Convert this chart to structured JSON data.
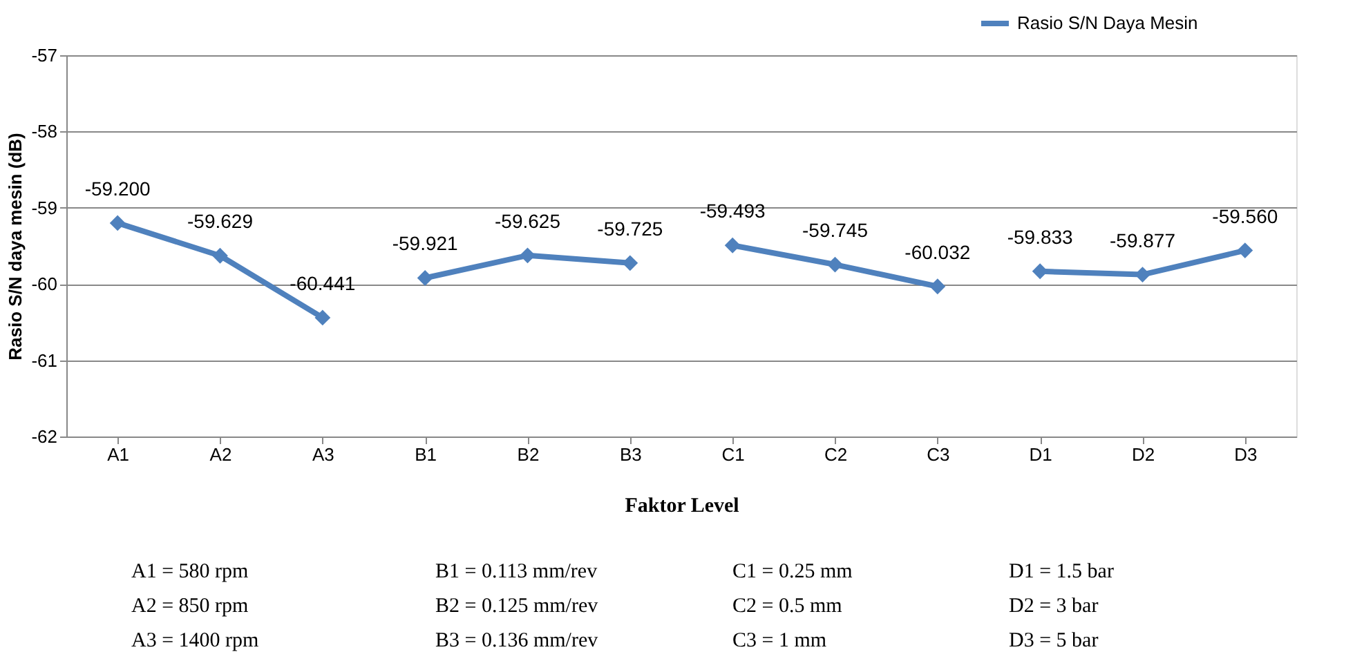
{
  "chart_data": {
    "type": "line",
    "xlabel": "Faktor Level",
    "ylabel": "Rasio S/N daya mesin (dB)",
    "categories": [
      "A1",
      "A2",
      "A3",
      "B1",
      "B2",
      "B3",
      "C1",
      "C2",
      "C3",
      "D1",
      "D2",
      "D3"
    ],
    "series": [
      {
        "name": "Rasio S/N Daya Mesin",
        "color": "#4f81bd",
        "values": [
          -59.2,
          -59.629,
          -60.441,
          null,
          null,
          null,
          null,
          null,
          null,
          null,
          null,
          null
        ],
        "value_labels": [
          "-59.200",
          "-59.629",
          "-60.441",
          null,
          null,
          null,
          null,
          null,
          null,
          null,
          null,
          null
        ]
      },
      {
        "color": "#4f81bd",
        "values": [
          null,
          null,
          null,
          -59.921,
          -59.625,
          -59.725,
          null,
          null,
          null,
          null,
          null,
          null
        ],
        "value_labels": [
          null,
          null,
          null,
          "-59.921",
          "-59.625",
          "-59.725",
          null,
          null,
          null,
          null,
          null,
          null
        ]
      },
      {
        "color": "#4f81bd",
        "values": [
          null,
          null,
          null,
          null,
          null,
          null,
          -59.493,
          -59.745,
          -60.032,
          null,
          null,
          null
        ],
        "value_labels": [
          null,
          null,
          null,
          null,
          null,
          null,
          "-59.493",
          "-59.745",
          "-60.032",
          null,
          null,
          null
        ]
      },
      {
        "color": "#4f81bd",
        "values": [
          null,
          null,
          null,
          null,
          null,
          null,
          null,
          null,
          null,
          -59.833,
          -59.877,
          -59.56
        ],
        "value_labels": [
          null,
          null,
          null,
          null,
          null,
          null,
          null,
          null,
          null,
          "-59.833",
          "-59.877",
          "-59.560"
        ]
      }
    ],
    "ylim": [
      -62,
      -57
    ],
    "yticks": [
      -62,
      -61,
      -60,
      -59,
      -58,
      -57
    ],
    "grid": "y",
    "legend": "top right",
    "marker": "diamond",
    "line_style": "solid",
    "annotations": [
      "A1 = 580 rpm",
      "B1 = 0.113 mm/rev",
      "C1 = 0.25 mm",
      "D1 = 1.5 bar",
      "A2 = 850 rpm",
      "B2 = 0.125 mm/rev",
      "C2 = 0.5 mm",
      "D2 = 3 bar",
      "A3 = 1400 rpm",
      "B3 = 0.136 mm/rev",
      "C3 = 1 mm",
      "D3 = 5 bar"
    ]
  }
}
